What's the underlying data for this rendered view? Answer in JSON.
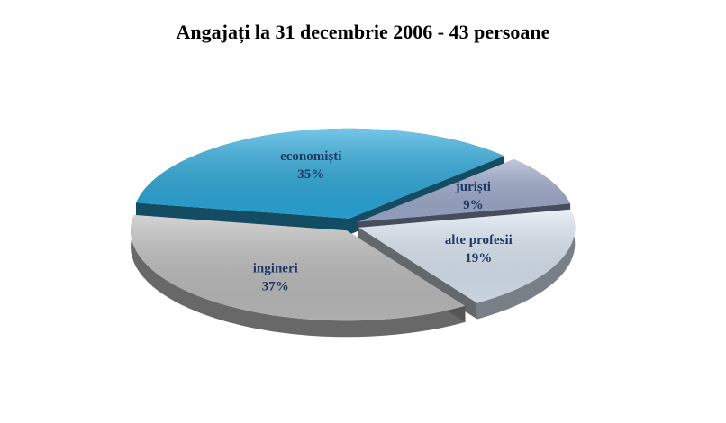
{
  "chart_data": {
    "type": "pie",
    "title": "Angajați la 31 decembrie 2006 - 43 persoane",
    "categories": [
      "economiști",
      "juriști",
      "alte profesii",
      "ingineri"
    ],
    "values": [
      35,
      9,
      19,
      37
    ],
    "value_labels": [
      "35%",
      "9%",
      "19%",
      "37%"
    ],
    "colors": [
      "#2aa9dc",
      "#9eabcc",
      "#dbe7f3",
      "#bdbdbd"
    ]
  }
}
